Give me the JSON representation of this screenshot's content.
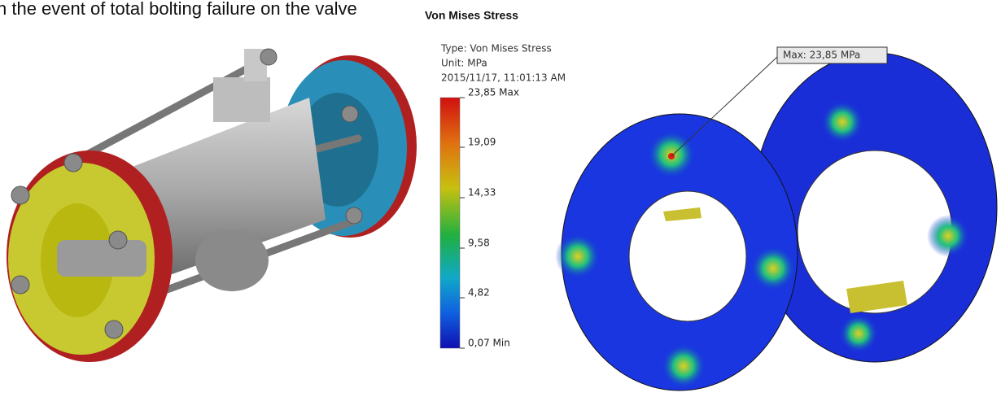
{
  "caption": "n the event of total bolting failure on the valve",
  "panel": {
    "title": "Von Mises Stress",
    "type_line": "Type: Von Mises Stress",
    "unit_line": "Unit: MPa",
    "date_line": "2015/11/17, 11:01:13 AM"
  },
  "legend": {
    "labels": [
      "23,85 Max",
      "19,09",
      "14,33",
      "9,58",
      "4,82",
      "0,07 Min"
    ]
  },
  "annotation": "Max: 23,85 MPa"
}
